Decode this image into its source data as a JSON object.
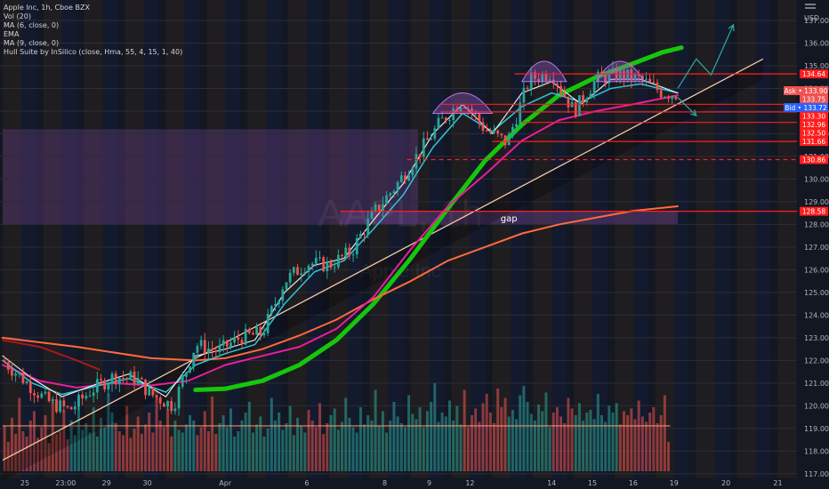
{
  "header": {
    "indicators": [
      "Apple Inc, 1h, Cboe BZX",
      "Vol (20)",
      "MA (6, close, 0)",
      "EMA",
      "MA (9, close, 0)",
      "Hull Suite by InSilico (close, Hma, 55, 4, 15, 1, 40)"
    ],
    "currency": "USD",
    "watermark_symbol": "AAPL, 1h",
    "watermark_name": "Apple Inc"
  },
  "colors": {
    "background": "#131722",
    "up_candle": "#26a69a",
    "down_candle": "#ef5350",
    "hull_green": "#16c60c",
    "ema_orange": "#ff6a3d",
    "ma_magenta": "#e91e9c",
    "ma_teal": "#2ec7d8",
    "ma_white": "#e8e8e8",
    "level_red": "#ff1e1e",
    "zone_purple": "#5c3a78"
  },
  "chart_data": {
    "type": "candlestick",
    "symbol": "AAPL",
    "interval": "1h",
    "y_axis": {
      "ticks": [
        137,
        136,
        135,
        134,
        133,
        132,
        131,
        130,
        129,
        128,
        127,
        126,
        125,
        124,
        123,
        122,
        121,
        120,
        119,
        118,
        117
      ],
      "tick_labels": [
        "137.00",
        "136.00",
        "135.00",
        "134.00",
        "133.00",
        "132.00",
        "131.00",
        "130.00",
        "129.00",
        "128.00",
        "127.00",
        "126.00",
        "125.00",
        "124.00",
        "123.00",
        "122.00",
        "121.00",
        "120.00",
        "119.00",
        "118.00",
        "117.00"
      ],
      "ylim": [
        116.8,
        137.9
      ]
    },
    "x_axis": {
      "ticks": [
        {
          "label": "25",
          "bar": 6
        },
        {
          "label": "23:00",
          "bar": 17
        },
        {
          "label": "29",
          "bar": 28
        },
        {
          "label": "30",
          "bar": 39
        },
        {
          "label": "Apr",
          "bar": 60
        },
        {
          "label": "6",
          "bar": 82
        },
        {
          "label": "8",
          "bar": 103
        },
        {
          "label": "9",
          "bar": 115
        },
        {
          "label": "12",
          "bar": 126
        },
        {
          "label": "14",
          "bar": 148
        },
        {
          "label": "15",
          "bar": 159
        },
        {
          "label": "16",
          "bar": 170
        },
        {
          "label": "19",
          "bar": 181
        },
        {
          "label": "20",
          "bar": 195
        },
        {
          "label": "21",
          "bar": 209
        }
      ]
    },
    "price_labels": [
      {
        "value": 134.64,
        "text": "134.64",
        "color": "#ff1e1e"
      },
      {
        "value": 133.9,
        "text": "Ask • 133.90",
        "color": "#ef5350"
      },
      {
        "value": 133.75,
        "text": "133.75",
        "color": "#ef5350"
      },
      {
        "value": 133.72,
        "text": "Bid • 133.72",
        "color": "#2962ff"
      },
      {
        "value": 133.3,
        "text": "133.30",
        "color": "#ff1e1e"
      },
      {
        "value": 132.96,
        "text": "132.96",
        "color": "#ff1e1e"
      },
      {
        "value": 132.5,
        "text": "132.50",
        "color": "#ff1e1e"
      },
      {
        "value": 131.66,
        "text": "131.66",
        "color": "#ff1e1e"
      },
      {
        "value": 130.86,
        "text": "130.86",
        "color": "#ff1e1e"
      },
      {
        "value": 128.58,
        "text": "128.58",
        "color": "#ff1e1e"
      }
    ],
    "horizontal_levels": [
      {
        "value": 134.64,
        "from_bar": 138,
        "to_bar": 211
      },
      {
        "value": 133.3,
        "from_bar": 118,
        "to_bar": 211
      },
      {
        "value": 132.96,
        "from_bar": 118,
        "to_bar": 211
      },
      {
        "value": 132.5,
        "from_bar": 140,
        "to_bar": 211
      },
      {
        "value": 131.66,
        "from_bar": 132,
        "to_bar": 211
      },
      {
        "value": 130.86,
        "from_bar": 109,
        "to_bar": 211,
        "dashed": true
      },
      {
        "value": 128.58,
        "from_bar": 91,
        "to_bar": 211
      }
    ],
    "zones": [
      {
        "from": 128.0,
        "to": 132.2,
        "from_bar": 0,
        "to_bar": 112
      },
      {
        "from": 128.0,
        "to": 128.58,
        "from_bar": 91,
        "to_bar": 182,
        "label": "gap"
      }
    ],
    "trendline": {
      "from": {
        "bar": 0,
        "value": 117.6
      },
      "to": {
        "bar": 205,
        "value": 135.3
      }
    },
    "forecast_arrows": [
      {
        "points": [
          [
            182,
            134.0
          ],
          [
            187,
            135.3
          ],
          [
            191,
            134.6
          ],
          [
            197,
            136.8
          ]
        ],
        "color": "#26a69a"
      },
      {
        "points": [
          [
            182,
            133.6
          ],
          [
            187,
            132.8
          ]
        ],
        "color": "#26a69a"
      }
    ],
    "pattern_arcs": [
      {
        "from_bar": 116,
        "to_bar": 132,
        "top": 133.8
      },
      {
        "from_bar": 140,
        "to_bar": 152,
        "top": 135.2
      },
      {
        "from_bar": 160,
        "to_bar": 173,
        "top": 135.2
      }
    ],
    "price_series": [
      {
        "bar": 0,
        "value": 122.0
      },
      {
        "bar": 6,
        "value": 121.1
      },
      {
        "bar": 12,
        "value": 120.2
      },
      {
        "bar": 18,
        "value": 119.8
      },
      {
        "bar": 24,
        "value": 120.7
      },
      {
        "bar": 30,
        "value": 121.3
      },
      {
        "bar": 36,
        "value": 121.2
      },
      {
        "bar": 40,
        "value": 120.5
      },
      {
        "bar": 46,
        "value": 120.0
      },
      {
        "bar": 52,
        "value": 122.7
      },
      {
        "bar": 58,
        "value": 122.4
      },
      {
        "bar": 64,
        "value": 123.0
      },
      {
        "bar": 70,
        "value": 123.2
      },
      {
        "bar": 76,
        "value": 125.5
      },
      {
        "bar": 82,
        "value": 126.3
      },
      {
        "bar": 88,
        "value": 126.2
      },
      {
        "bar": 94,
        "value": 126.8
      },
      {
        "bar": 100,
        "value": 128.5
      },
      {
        "bar": 106,
        "value": 129.7
      },
      {
        "bar": 112,
        "value": 131.1
      },
      {
        "bar": 118,
        "value": 132.5
      },
      {
        "bar": 124,
        "value": 133.5
      },
      {
        "bar": 130,
        "value": 132.2
      },
      {
        "bar": 136,
        "value": 131.6
      },
      {
        "bar": 142,
        "value": 134.4
      },
      {
        "bar": 148,
        "value": 134.7
      },
      {
        "bar": 154,
        "value": 133.0
      },
      {
        "bar": 160,
        "value": 134.4
      },
      {
        "bar": 166,
        "value": 134.6
      },
      {
        "bar": 172,
        "value": 134.4
      },
      {
        "bar": 178,
        "value": 133.8
      },
      {
        "bar": 181,
        "value": 133.75
      }
    ],
    "ma_lines": [
      {
        "name": "Hull",
        "color": "#16c60c",
        "width": 5,
        "points": [
          [
            52,
            120.7
          ],
          [
            60,
            120.75
          ],
          [
            70,
            121.1
          ],
          [
            80,
            121.8
          ],
          [
            90,
            122.9
          ],
          [
            100,
            124.5
          ],
          [
            110,
            126.5
          ],
          [
            120,
            128.7
          ],
          [
            130,
            130.8
          ],
          [
            140,
            132.4
          ],
          [
            150,
            133.7
          ],
          [
            160,
            134.5
          ],
          [
            170,
            135.1
          ],
          [
            178,
            135.6
          ],
          [
            183,
            135.8
          ]
        ]
      },
      {
        "name": "EMA",
        "color": "#ff6a3d",
        "width": 2,
        "points": [
          [
            0,
            123.0
          ],
          [
            20,
            122.6
          ],
          [
            40,
            122.1
          ],
          [
            52,
            122.0
          ],
          [
            60,
            122.1
          ],
          [
            70,
            122.5
          ],
          [
            80,
            123.1
          ],
          [
            90,
            123.8
          ],
          [
            100,
            124.7
          ],
          [
            110,
            125.5
          ],
          [
            120,
            126.4
          ],
          [
            130,
            127.0
          ],
          [
            140,
            127.6
          ],
          [
            150,
            128.0
          ],
          [
            160,
            128.3
          ],
          [
            170,
            128.6
          ],
          [
            182,
            128.8
          ]
        ]
      },
      {
        "name": "MA 9",
        "color": "#e91e9c",
        "width": 2,
        "points": [
          [
            0,
            121.8
          ],
          [
            10,
            121.1
          ],
          [
            20,
            120.8
          ],
          [
            30,
            121.0
          ],
          [
            40,
            120.9
          ],
          [
            50,
            121.1
          ],
          [
            60,
            121.8
          ],
          [
            70,
            122.2
          ],
          [
            80,
            122.6
          ],
          [
            90,
            123.4
          ],
          [
            100,
            124.8
          ],
          [
            110,
            126.9
          ],
          [
            120,
            128.8
          ],
          [
            130,
            130.2
          ],
          [
            140,
            131.7
          ],
          [
            150,
            132.6
          ],
          [
            160,
            133.0
          ],
          [
            170,
            133.3
          ],
          [
            182,
            133.7
          ]
        ]
      },
      {
        "name": "MA 6 teal",
        "color": "#2ec7d8",
        "width": 1.5,
        "points": [
          [
            0,
            122.0
          ],
          [
            8,
            121.0
          ],
          [
            16,
            120.5
          ],
          [
            26,
            120.9
          ],
          [
            34,
            121.2
          ],
          [
            44,
            120.6
          ],
          [
            52,
            121.8
          ],
          [
            60,
            122.3
          ],
          [
            68,
            122.7
          ],
          [
            76,
            124.5
          ],
          [
            84,
            125.9
          ],
          [
            92,
            126.4
          ],
          [
            100,
            127.8
          ],
          [
            108,
            129.3
          ],
          [
            116,
            131.4
          ],
          [
            124,
            132.9
          ],
          [
            132,
            132.1
          ],
          [
            140,
            133.2
          ],
          [
            148,
            133.8
          ],
          [
            156,
            133.4
          ],
          [
            164,
            134.0
          ],
          [
            172,
            134.2
          ],
          [
            182,
            133.8
          ]
        ]
      },
      {
        "name": "MA 6 white",
        "color": "#e8e8e8",
        "width": 1.2,
        "points": [
          [
            0,
            122.2
          ],
          [
            8,
            121.2
          ],
          [
            16,
            120.4
          ],
          [
            26,
            121.0
          ],
          [
            34,
            121.4
          ],
          [
            44,
            120.4
          ],
          [
            52,
            122.2
          ],
          [
            60,
            122.5
          ],
          [
            68,
            122.9
          ],
          [
            76,
            125.0
          ],
          [
            84,
            126.2
          ],
          [
            92,
            126.5
          ],
          [
            100,
            128.2
          ],
          [
            108,
            129.8
          ],
          [
            116,
            132.0
          ],
          [
            124,
            133.3
          ],
          [
            132,
            132.0
          ],
          [
            140,
            133.8
          ],
          [
            148,
            134.3
          ],
          [
            156,
            133.3
          ],
          [
            164,
            134.4
          ],
          [
            172,
            134.4
          ],
          [
            182,
            133.8
          ]
        ]
      },
      {
        "name": "Dark red",
        "color": "#a8181e",
        "width": 2,
        "points": [
          [
            0,
            122.9
          ],
          [
            10,
            122.6
          ],
          [
            20,
            122.0
          ],
          [
            26,
            121.6
          ]
        ]
      }
    ],
    "volume": {
      "ylim": [
        0,
        100
      ],
      "values": [
        34,
        22,
        40,
        28,
        55,
        30,
        26,
        38,
        45,
        25,
        33,
        42,
        21,
        52,
        28,
        30,
        46,
        24,
        38,
        27,
        55,
        31,
        36,
        29,
        48,
        26,
        40,
        33,
        58,
        44,
        36,
        30,
        27,
        49,
        25,
        32,
        41,
        28,
        35,
        44,
        29,
        60,
        38,
        33,
        47,
        26,
        38,
        31,
        29,
        35,
        42,
        38,
        27,
        33,
        45,
        30,
        56,
        28,
        36,
        42,
        33,
        47,
        26,
        30,
        38,
        44,
        52,
        29,
        35,
        41,
        26,
        32,
        55,
        38,
        44,
        31,
        36,
        49,
        27,
        40,
        34,
        29,
        46,
        38,
        33,
        51,
        28,
        36,
        42,
        47,
        31,
        37,
        55,
        40,
        33,
        29,
        48,
        35,
        42,
        38,
        61,
        34,
        45,
        29,
        38,
        52,
        41,
        36,
        33,
        57,
        43,
        39,
        48,
        33,
        45,
        52,
        66,
        37,
        44,
        41,
        53,
        38,
        49,
        35,
        61,
        33,
        42,
        47,
        37,
        51,
        58,
        44,
        36,
        62,
        48,
        55,
        41,
        46,
        39,
        57,
        64,
        52,
        43,
        38,
        50,
        45,
        59,
        33,
        44,
        48,
        41,
        36,
        55,
        47,
        42,
        51,
        38,
        44,
        46,
        39,
        58,
        42,
        37,
        49,
        44,
        51,
        35,
        45,
        42,
        47,
        39,
        53,
        41,
        37,
        44,
        48,
        36,
        42,
        57,
        22
      ],
      "ma_level": 34
    }
  }
}
